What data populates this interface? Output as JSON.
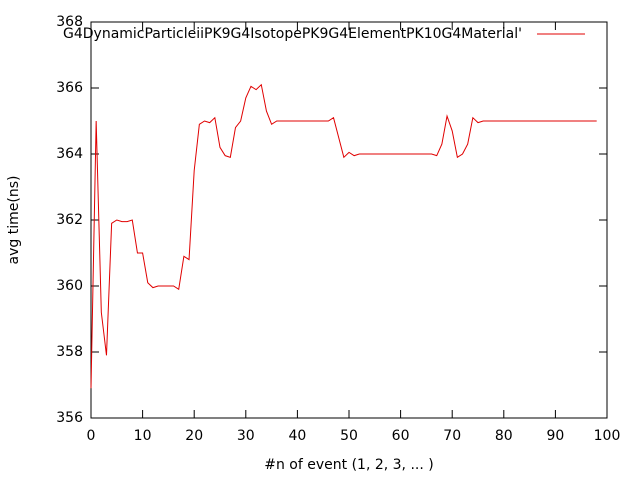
{
  "chart_data": {
    "type": "line",
    "xlabel": "#n of event (1, 2, 3, ... )",
    "ylabel": "avg time(ns)",
    "x": [
      0,
      1,
      2,
      3,
      4,
      5,
      6,
      7,
      8,
      9,
      10,
      11,
      12,
      13,
      14,
      15,
      16,
      17,
      18,
      19,
      20,
      21,
      22,
      23,
      24,
      25,
      26,
      27,
      28,
      29,
      30,
      31,
      32,
      33,
      34,
      35,
      36,
      37,
      38,
      39,
      40,
      41,
      42,
      43,
      44,
      45,
      46,
      47,
      48,
      49,
      50,
      51,
      52,
      53,
      54,
      55,
      56,
      57,
      58,
      59,
      60,
      61,
      62,
      63,
      64,
      65,
      66,
      67,
      68,
      69,
      70,
      71,
      72,
      73,
      74,
      75,
      76,
      77,
      78,
      79,
      80,
      81,
      82,
      83,
      84,
      85,
      86,
      87,
      88,
      89,
      90,
      91,
      92,
      93,
      94,
      95,
      96,
      97,
      98
    ],
    "series": [
      {
        "name": "G4DynamicParticleiiPK9G4IsotopePK9G4ElementPK10G4Material'",
        "color": "#e00000",
        "values": [
          356.9,
          365.0,
          359.2,
          357.9,
          361.9,
          362.0,
          361.95,
          361.95,
          362.0,
          361.0,
          361.0,
          360.1,
          359.95,
          360.0,
          360.0,
          360.0,
          360.0,
          359.9,
          360.9,
          360.8,
          363.5,
          364.9,
          365.0,
          364.95,
          365.1,
          364.2,
          363.95,
          363.9,
          364.8,
          365.0,
          365.7,
          366.05,
          365.95,
          366.1,
          365.3,
          364.9,
          365,
          365,
          365,
          365,
          365,
          365,
          365,
          365,
          365,
          365,
          365,
          365.1,
          364.5,
          363.9,
          364.05,
          363.95,
          364,
          364,
          364,
          364,
          364,
          364,
          364,
          364,
          364,
          364,
          364,
          364,
          364,
          364,
          364,
          363.95,
          364.3,
          365.15,
          364.7,
          363.9,
          364.0,
          364.3,
          365.1,
          364.95,
          365,
          365,
          365,
          365,
          365,
          365,
          365,
          365,
          365,
          365,
          365,
          365,
          365,
          365,
          365,
          365,
          365,
          365,
          365,
          365,
          365,
          365,
          365
        ]
      }
    ],
    "xlim": [
      0,
      100
    ],
    "xticks": [
      0,
      10,
      20,
      30,
      40,
      50,
      60,
      70,
      80,
      90,
      100
    ],
    "ylim": [
      356,
      368
    ],
    "yticks": [
      356,
      358,
      360,
      362,
      364,
      366,
      368
    ],
    "legend": "top-right",
    "grid": false
  }
}
